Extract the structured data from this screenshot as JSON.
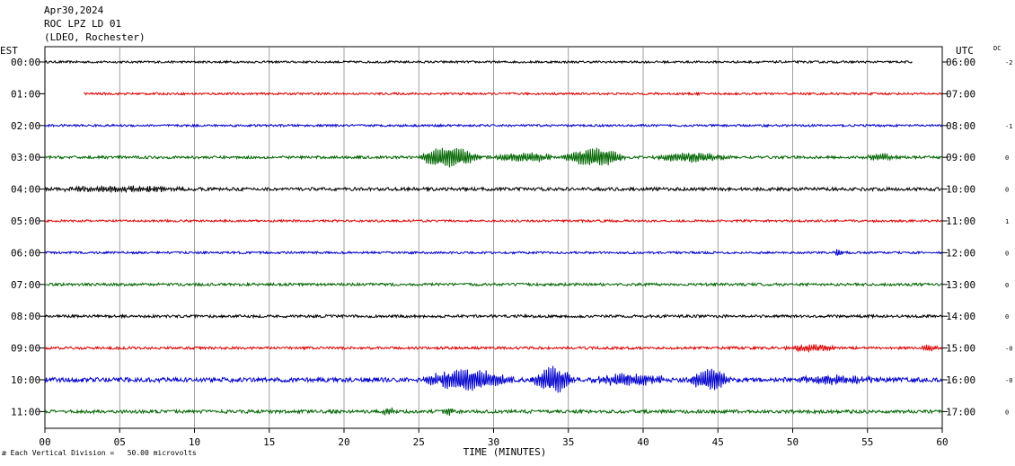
{
  "header": {
    "date": "Apr30,2024",
    "station": "ROC LPZ LD 01",
    "network": "(LDEO, Rochester)"
  },
  "axis_left_label": "EST",
  "axis_right_label": "UTC",
  "dc_label": "DC",
  "footer": {
    "glyph": "æ",
    "note": " Each Vertical Division =   50.00 microvolts"
  },
  "chart_data": {
    "type": "line",
    "xlabel": "TIME (MINUTES)",
    "ylabel": "",
    "xlim": [
      0,
      60
    ],
    "xticks": [
      "00",
      "05",
      "10",
      "15",
      "20",
      "25",
      "30",
      "35",
      "40",
      "45",
      "50",
      "55",
      "60"
    ],
    "grid": true,
    "series": [
      {
        "left": "00:00",
        "right": "06:00",
        "dc": "-2",
        "color": "#000000",
        "start": 0,
        "end": 58,
        "amp": 1.2,
        "bursts": []
      },
      {
        "left": "01:00",
        "right": "07:00",
        "dc": "",
        "color": "#dd0000",
        "start": 2.6,
        "end": 60,
        "amp": 1.2,
        "bursts": []
      },
      {
        "left": "02:00",
        "right": "08:00",
        "dc": "-1",
        "color": "#0000cc",
        "start": 0,
        "end": 60,
        "amp": 1.2,
        "bursts": []
      },
      {
        "left": "03:00",
        "right": "09:00",
        "dc": "0",
        "color": "#006600",
        "start": 0,
        "end": 60,
        "amp": 1.5,
        "bursts": [
          {
            "from": 24.8,
            "to": 29.2,
            "amp": 11
          },
          {
            "from": 29.5,
            "to": 34.5,
            "amp": 5
          },
          {
            "from": 34.5,
            "to": 39,
            "amp": 10
          },
          {
            "from": 40.5,
            "to": 46,
            "amp": 5
          },
          {
            "from": 54.8,
            "to": 57,
            "amp": 4
          }
        ]
      },
      {
        "left": "04:00",
        "right": "10:00",
        "dc": "0",
        "color": "#000000",
        "start": 0,
        "end": 60,
        "amp": 1.8,
        "bursts": [
          {
            "from": 0,
            "to": 10,
            "amp": 2.5
          }
        ]
      },
      {
        "left": "05:00",
        "right": "11:00",
        "dc": "1",
        "color": "#dd0000",
        "start": 0,
        "end": 60,
        "amp": 1.2,
        "bursts": []
      },
      {
        "left": "06:00",
        "right": "12:00",
        "dc": "0",
        "color": "#0000cc",
        "start": 0,
        "end": 60,
        "amp": 1.2,
        "bursts": [
          {
            "from": 52.7,
            "to": 53.3,
            "amp": 4
          }
        ]
      },
      {
        "left": "07:00",
        "right": "13:00",
        "dc": "0",
        "color": "#006600",
        "start": 0,
        "end": 60,
        "amp": 1.5,
        "bursts": []
      },
      {
        "left": "08:00",
        "right": "14:00",
        "dc": "0",
        "color": "#000000",
        "start": 0,
        "end": 60,
        "amp": 1.5,
        "bursts": []
      },
      {
        "left": "09:00",
        "right": "15:00",
        "dc": "-0",
        "color": "#dd0000",
        "start": 0,
        "end": 60,
        "amp": 1.4,
        "bursts": [
          {
            "from": 49.3,
            "to": 53,
            "amp": 3.5
          },
          {
            "from": 58.5,
            "to": 60,
            "amp": 3
          }
        ]
      },
      {
        "left": "10:00",
        "right": "16:00",
        "dc": "-0",
        "color": "#0000cc",
        "start": 0,
        "end": 60,
        "amp": 2.5,
        "bursts": [
          {
            "from": 25,
            "to": 31.5,
            "amp": 11
          },
          {
            "from": 32.5,
            "to": 35.5,
            "amp": 14
          },
          {
            "from": 36,
            "to": 42,
            "amp": 6
          },
          {
            "from": 43,
            "to": 46,
            "amp": 12
          },
          {
            "from": 49,
            "to": 56,
            "amp": 4
          }
        ]
      },
      {
        "left": "11:00",
        "right": "17:00",
        "dc": "0",
        "color": "#006600",
        "start": 0,
        "end": 60,
        "amp": 1.8,
        "bursts": [
          {
            "from": 22.5,
            "to": 23.5,
            "amp": 4
          },
          {
            "from": 26.5,
            "to": 27.5,
            "amp": 4
          }
        ]
      }
    ]
  }
}
